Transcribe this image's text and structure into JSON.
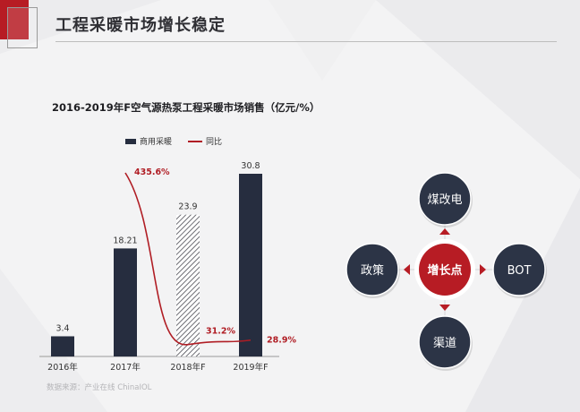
{
  "page_title": "工程采暖市场增长稳定",
  "chart_data": {
    "type": "bar",
    "title": "2016-2019年F空气源热泵工程采暖市场销售（亿元/%）",
    "categories": [
      "2016年",
      "2017年",
      "2018年F",
      "2019年F"
    ],
    "series": [
      {
        "name": "商用采暖",
        "type": "bar",
        "values": [
          3.4,
          18.21,
          23.9,
          30.8
        ],
        "color": "#262d3f"
      },
      {
        "name": "同比",
        "type": "line",
        "values": [
          null,
          435.6,
          31.2,
          28.9
        ],
        "color": "#b01d24"
      }
    ],
    "bar_value_labels": [
      "3.4",
      "18.21",
      "23.9",
      "30.8"
    ],
    "line_value_labels": [
      "",
      "435.6%",
      "31.2%",
      "28.9%"
    ],
    "hatched_category": "2018年F",
    "legend_position": "top",
    "grid": false
  },
  "source": "数据来源：产业在线  ChinaIOL",
  "diagram": {
    "center": "增长点",
    "nodes": {
      "top": "煤改电",
      "right": "BOT",
      "bottom": "渠道",
      "left": "政策"
    },
    "colors": {
      "center": "#b71c24",
      "node": "#2c3446",
      "arrow": "#b71c24"
    }
  }
}
